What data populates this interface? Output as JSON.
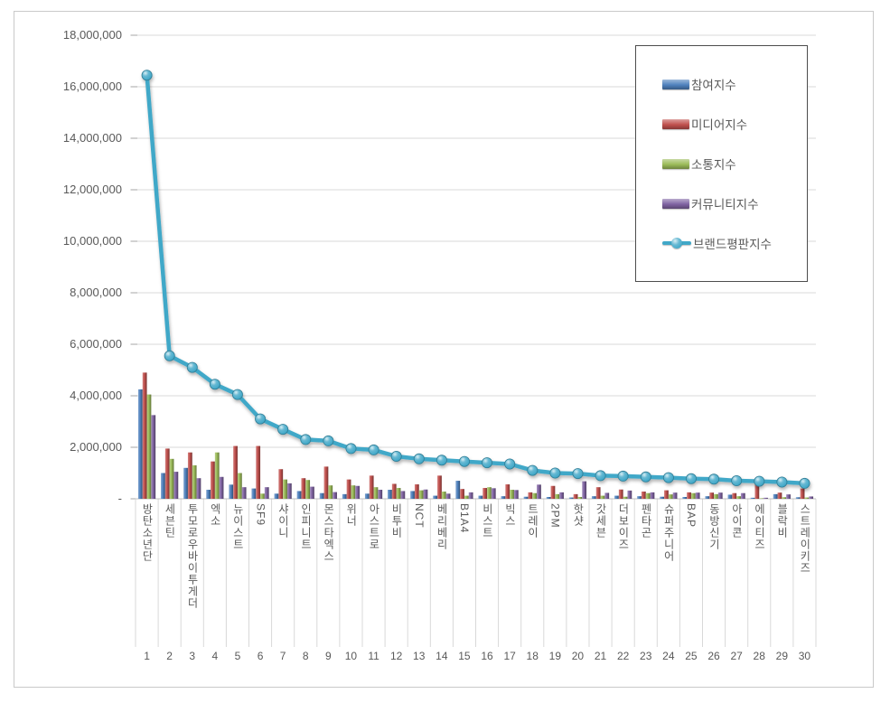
{
  "chart_data": {
    "type": "bar",
    "subtype": "clustered-bars-with-line-overlay",
    "title": "",
    "xlabel": "",
    "ylabel": "",
    "ylim": [
      0,
      18000000
    ],
    "ytick_interval": 2000000,
    "ytick_labels": [
      "18,000,000",
      "16,000,000",
      "14,000,000",
      "12,000,000",
      "10,000,000",
      "8,000,000",
      "6,000,000",
      "4,000,000",
      "2,000,000",
      "-"
    ],
    "grid": true,
    "legend_position": "top-right",
    "categories": [
      "방탄소년단",
      "세븐틴",
      "투모로우바이투게더",
      "엑소",
      "뉴이스트",
      "SF9",
      "샤이니",
      "인피니트",
      "몬스타엑스",
      "위너",
      "아스트로",
      "비투비",
      "NCT",
      "베리베리",
      "B1A4",
      "비스트",
      "빅스",
      "트레이",
      "2PM",
      "핫샷",
      "갓세븐",
      "더보이즈",
      "펜타곤",
      "슈퍼주니어",
      "BAP",
      "동방신기",
      "아이콘",
      "에이티즈",
      "블락비",
      "스트레이키즈"
    ],
    "ranks": [
      1,
      2,
      3,
      4,
      5,
      6,
      7,
      8,
      9,
      10,
      11,
      12,
      13,
      14,
      15,
      16,
      17,
      18,
      19,
      20,
      21,
      22,
      23,
      24,
      25,
      26,
      27,
      28,
      29,
      30
    ],
    "series": [
      {
        "name": "참여지수",
        "kind": "bar",
        "color": "#4F81BD",
        "values": [
          4250000,
          1000000,
          1200000,
          350000,
          550000,
          400000,
          200000,
          300000,
          220000,
          180000,
          200000,
          350000,
          300000,
          120000,
          700000,
          120000,
          100000,
          80000,
          70000,
          50000,
          100000,
          120000,
          100000,
          80000,
          70000,
          100000,
          160000,
          40000,
          180000,
          60000
        ]
      },
      {
        "name": "미디어지수",
        "kind": "bar",
        "color": "#C0504D",
        "values": [
          4900000,
          1950000,
          1800000,
          1450000,
          2050000,
          2050000,
          1150000,
          800000,
          1250000,
          750000,
          900000,
          580000,
          560000,
          900000,
          380000,
          420000,
          560000,
          250000,
          500000,
          180000,
          450000,
          360000,
          280000,
          330000,
          250000,
          240000,
          220000,
          580000,
          240000,
          400000
        ]
      },
      {
        "name": "소통지수",
        "kind": "bar",
        "color": "#9BBB59",
        "values": [
          4050000,
          1550000,
          1300000,
          1800000,
          1000000,
          200000,
          750000,
          730000,
          520000,
          520000,
          450000,
          420000,
          330000,
          280000,
          120000,
          450000,
          350000,
          220000,
          180000,
          70000,
          120000,
          80000,
          220000,
          170000,
          220000,
          180000,
          100000,
          20000,
          60000,
          50000
        ]
      },
      {
        "name": "커뮤니티지수",
        "kind": "bar",
        "color": "#8064A2",
        "values": [
          3250000,
          1050000,
          800000,
          850000,
          450000,
          450000,
          600000,
          470000,
          260000,
          500000,
          350000,
          300000,
          360000,
          200000,
          250000,
          410000,
          340000,
          550000,
          250000,
          680000,
          230000,
          320000,
          250000,
          240000,
          240000,
          240000,
          220000,
          40000,
          170000,
          90000
        ]
      },
      {
        "name": "브랜드평판지수",
        "kind": "line",
        "color": "#41A8C8",
        "values": [
          16450000,
          5550000,
          5100000,
          4450000,
          4050000,
          3100000,
          2700000,
          2300000,
          2250000,
          1950000,
          1900000,
          1650000,
          1550000,
          1500000,
          1450000,
          1400000,
          1350000,
          1100000,
          1000000,
          980000,
          900000,
          880000,
          850000,
          820000,
          780000,
          760000,
          700000,
          680000,
          650000,
          600000
        ]
      }
    ]
  }
}
